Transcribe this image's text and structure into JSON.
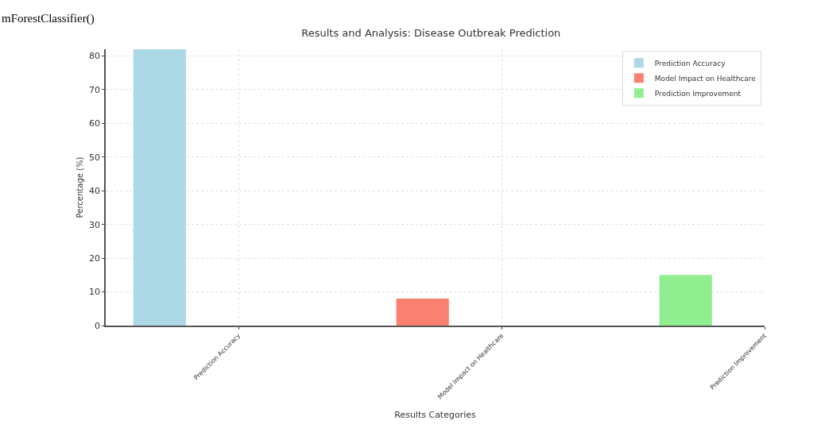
{
  "chart_data": {
    "type": "bar",
    "title": "Results and Analysis: Disease Outbreak Prediction",
    "xlabel": "Results Categories",
    "ylabel": "Percentage (%)",
    "categories": [
      "Prediction Accuracy",
      "Model Impact on Healthcare",
      "Prediction Improvement"
    ],
    "series": [
      {
        "name": "Prediction Accuracy",
        "color": "#add8e6",
        "values": [
          82,
          null,
          null
        ]
      },
      {
        "name": "Model Impact on Healthcare",
        "color": "#fa8072",
        "values": [
          null,
          8,
          null
        ]
      },
      {
        "name": "Prediction Improvement",
        "color": "#90ee90",
        "values": [
          null,
          null,
          15
        ]
      }
    ],
    "ylim": [
      0,
      82
    ],
    "yticks": [
      0,
      10,
      20,
      30,
      40,
      50,
      60,
      70,
      80
    ],
    "grid": true,
    "legend": "top right",
    "annotations": [
      "mForestClassifier()"
    ]
  }
}
